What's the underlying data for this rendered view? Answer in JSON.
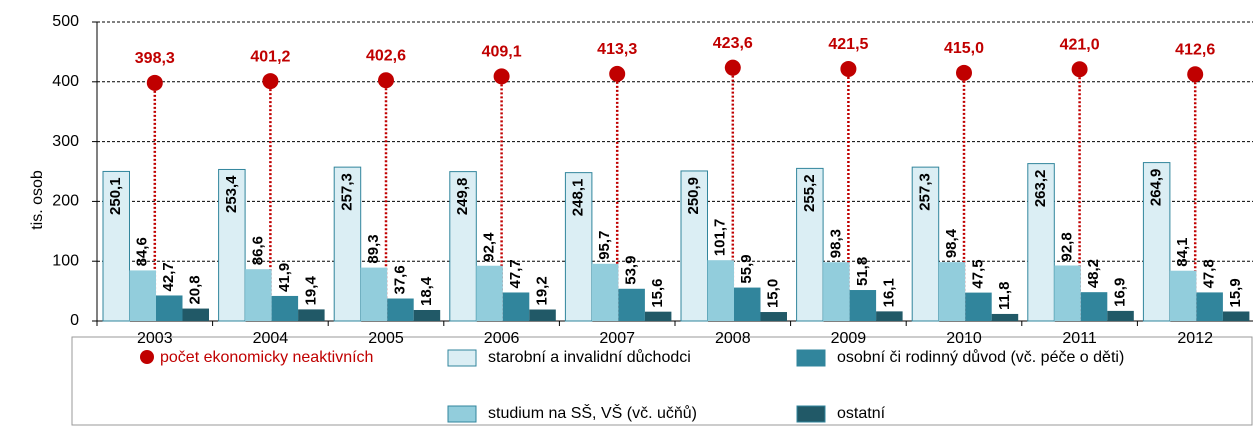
{
  "chart_data": {
    "type": "bar",
    "y_label": "tis. osob",
    "categories": [
      "2003",
      "2004",
      "2005",
      "2006",
      "2007",
      "2008",
      "2009",
      "2010",
      "2011",
      "2012"
    ],
    "ylim": [
      0,
      500
    ],
    "yticks": [
      0,
      100,
      200,
      300,
      400,
      500
    ],
    "grid": true,
    "series": [
      {
        "name": "starobní a invalidní důchodci",
        "color": "#dbeef4",
        "values": [
          250.1,
          253.4,
          257.3,
          249.8,
          248.1,
          250.9,
          255.2,
          257.3,
          263.2,
          264.9
        ],
        "value_labels": [
          "250,1",
          "253,4",
          "257,3",
          "249,8",
          "248,1",
          "250,9",
          "255,2",
          "257,3",
          "263,2",
          "264,9"
        ]
      },
      {
        "name": "studium na SŠ, VŠ (vč. učňů)",
        "color": "#92cddc",
        "values": [
          84.6,
          86.6,
          89.3,
          92.4,
          95.7,
          101.7,
          98.3,
          98.4,
          92.8,
          84.1
        ],
        "value_labels": [
          "84,6",
          "86,6",
          "89,3",
          "92,4",
          "95,7",
          "101,7",
          "98,3",
          "98,4",
          "92,8",
          "84,1"
        ]
      },
      {
        "name": "osobní či rodinný důvod (vč. péče o děti)",
        "color": "#31859c",
        "values": [
          42.7,
          41.9,
          37.6,
          47.7,
          53.9,
          55.9,
          51.8,
          47.5,
          48.2,
          47.8
        ],
        "value_labels": [
          "42,7",
          "41,9",
          "37,6",
          "47,7",
          "53,9",
          "55,9",
          "51,8",
          "47,5",
          "48,2",
          "47,8"
        ]
      },
      {
        "name": "ostatní",
        "color": "#215967",
        "values": [
          20.8,
          19.4,
          18.4,
          19.2,
          15.6,
          15.0,
          16.1,
          11.8,
          16.9,
          15.9
        ],
        "value_labels": [
          "20,8",
          "19,4",
          "18,4",
          "19,2",
          "15,6",
          "15,0",
          "16,1",
          "11,8",
          "16,9",
          "15,9"
        ]
      }
    ],
    "total": {
      "name": "počet ekonomicky neaktivních",
      "color": "#c00000",
      "values": [
        398.3,
        401.2,
        402.6,
        409.1,
        413.3,
        423.6,
        421.5,
        415.0,
        421.0,
        412.6
      ],
      "value_labels": [
        "398,3",
        "401,2",
        "402,6",
        "409,1",
        "413,3",
        "423,6",
        "421,5",
        "415,0",
        "421,0",
        "412,6"
      ]
    }
  }
}
